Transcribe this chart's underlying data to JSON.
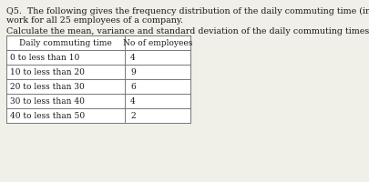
{
  "question_text_line1": "Q5.  The following gives the frequency distribution of the daily commuting time (in minutes) from home to",
  "question_text_line2": "work for all 25 employees of a company.",
  "instruction_text": "Calculate the mean, variance and standard deviation of the daily commuting times. (direct)",
  "col1_header": "Daily commuting time",
  "col2_header": "No of employees",
  "rows": [
    [
      "0 to less than 10",
      "4"
    ],
    [
      "10 to less than 20",
      "9"
    ],
    [
      "20 to less than 30",
      "6"
    ],
    [
      "30 to less than 40",
      "4"
    ],
    [
      "40 to less than 50",
      "2"
    ]
  ],
  "background_color": "#f0efe8",
  "table_bg": "#ffffff",
  "border_color": "#777777",
  "text_color": "#1a1a1a",
  "font_size_text": 6.8,
  "font_size_table": 6.5
}
